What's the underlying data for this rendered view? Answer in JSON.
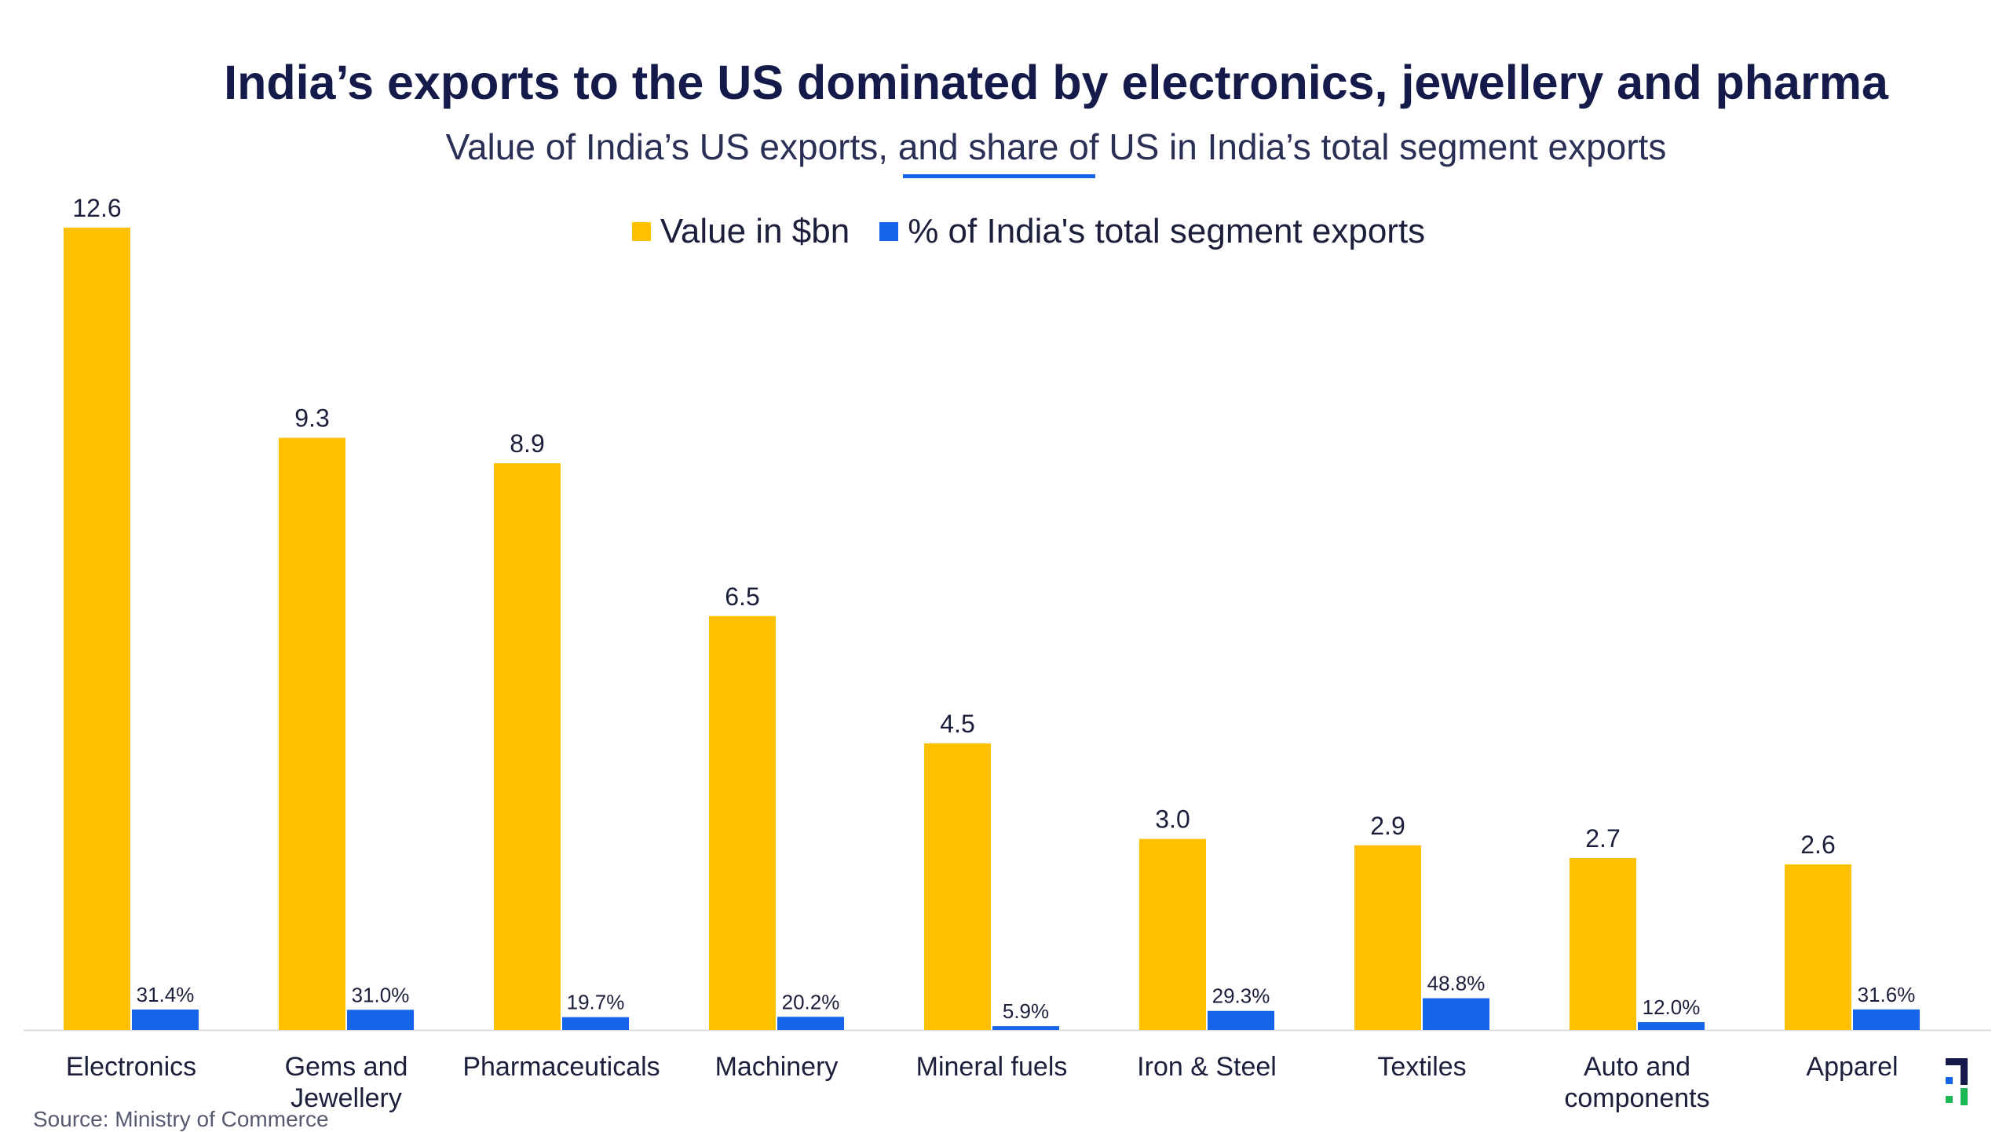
{
  "colors": {
    "value": "#FFC000",
    "share": "#1565E8",
    "logo_dark": "#141a4a",
    "logo_green": "#1db954"
  },
  "chart_data": {
    "type": "bar",
    "title": "India’s exports to the US dominated by electronics, jewellery and pharma",
    "subtitle": "Value of India’s US exports, and share of US in India’s total segment exports",
    "categories": [
      [
        "Electronics"
      ],
      [
        "Gems and",
        "Jewellery"
      ],
      [
        "Pharmaceuticals"
      ],
      [
        "Machinery"
      ],
      [
        "Mineral fuels"
      ],
      [
        "Iron & Steel"
      ],
      [
        "Textiles"
      ],
      [
        "Auto and",
        "components"
      ],
      [
        "Apparel"
      ]
    ],
    "series": [
      {
        "name": "Value in $bn",
        "values": [
          12.6,
          9.3,
          8.9,
          6.5,
          4.5,
          3.0,
          2.9,
          2.7,
          2.6
        ],
        "labels": [
          "12.6",
          "9.3",
          "8.9",
          "6.5",
          "4.5",
          "3.0",
          "2.9",
          "2.7",
          "2.6"
        ]
      },
      {
        "name": "% of India's total segment exports",
        "values": [
          31.4,
          31.0,
          19.7,
          20.2,
          5.9,
          29.3,
          48.8,
          12.0,
          31.6
        ],
        "labels": [
          "31.4%",
          "31.0%",
          "19.7%",
          "20.2%",
          "5.9%",
          "29.3%",
          "48.8%",
          "12.0%",
          "31.6%"
        ]
      }
    ],
    "legend_position": "top-center",
    "grid": false
  },
  "source": "Source: Ministry of Commerce"
}
